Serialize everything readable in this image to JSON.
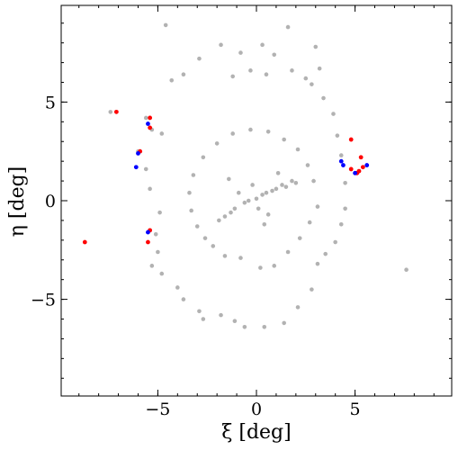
{
  "chart_data": {
    "type": "scatter",
    "xlabel": "ξ [deg]",
    "ylabel": "η [deg]",
    "xlim": [
      -9.9,
      9.9
    ],
    "ylim": [
      -9.9,
      9.9
    ],
    "xticks": [
      -5,
      0,
      5
    ],
    "yticks": [
      -5,
      0,
      5
    ],
    "xtick_labels": [
      "−5",
      "0",
      "5"
    ],
    "ytick_labels": [
      "−5",
      "0",
      "5"
    ],
    "grid": false,
    "ticks_direction": "in",
    "series": [
      {
        "marker_color": "#888888",
        "opacity": 0.65,
        "values": [
          [
            -4.6,
            8.9
          ],
          [
            1.6,
            8.8
          ],
          [
            0.3,
            7.9
          ],
          [
            -1.8,
            7.9
          ],
          [
            3.0,
            7.8
          ],
          [
            -0.8,
            7.5
          ],
          [
            0.9,
            7.4
          ],
          [
            -2.9,
            7.2
          ],
          [
            3.2,
            6.7
          ],
          [
            -3.7,
            6.4
          ],
          [
            1.8,
            6.6
          ],
          [
            -1.2,
            6.3
          ],
          [
            0.5,
            6.4
          ],
          [
            2.5,
            6.2
          ],
          [
            -4.3,
            6.1
          ],
          [
            -0.3,
            6.6
          ],
          [
            -7.4,
            4.5
          ],
          [
            -5.6,
            4.2
          ],
          [
            -6.0,
            2.5
          ],
          [
            -5.3,
            3.6
          ],
          [
            -4.8,
            3.4
          ],
          [
            -5.6,
            1.6
          ],
          [
            -5.4,
            0.6
          ],
          [
            -4.9,
            -0.6
          ],
          [
            -5.1,
            -1.7
          ],
          [
            -5.0,
            -2.6
          ],
          [
            -5.3,
            -3.3
          ],
          [
            -4.8,
            -3.7
          ],
          [
            -4.0,
            -4.4
          ],
          [
            -3.7,
            -5.0
          ],
          [
            -2.9,
            -5.6
          ],
          [
            -2.7,
            -6.0
          ],
          [
            -1.8,
            -5.8
          ],
          [
            -1.1,
            -6.1
          ],
          [
            -0.6,
            -6.4
          ],
          [
            0.4,
            -6.4
          ],
          [
            1.4,
            -6.2
          ],
          [
            2.1,
            -5.4
          ],
          [
            2.8,
            -4.5
          ],
          [
            3.1,
            -3.2
          ],
          [
            3.5,
            -2.7
          ],
          [
            4.0,
            -2.1
          ],
          [
            4.3,
            -1.2
          ],
          [
            4.5,
            -0.4
          ],
          [
            4.5,
            0.9
          ],
          [
            4.3,
            2.3
          ],
          [
            4.1,
            3.3
          ],
          [
            3.9,
            4.4
          ],
          [
            3.4,
            5.2
          ],
          [
            2.8,
            5.9
          ],
          [
            7.6,
            -3.5
          ],
          [
            -2.2,
            -2.3
          ],
          [
            -1.6,
            -2.8
          ],
          [
            -0.8,
            -2.9
          ],
          [
            0.2,
            -3.4
          ],
          [
            0.9,
            -3.3
          ],
          [
            1.6,
            -2.6
          ],
          [
            2.2,
            -1.9
          ],
          [
            2.7,
            -1.1
          ],
          [
            3.1,
            -0.3
          ],
          [
            2.9,
            1.0
          ],
          [
            2.6,
            1.8
          ],
          [
            2.1,
            2.6
          ],
          [
            1.4,
            3.1
          ],
          [
            0.6,
            3.5
          ],
          [
            -0.3,
            3.6
          ],
          [
            -1.2,
            3.4
          ],
          [
            -2.0,
            2.9
          ],
          [
            -2.7,
            2.2
          ],
          [
            -3.2,
            1.3
          ],
          [
            -3.4,
            0.4
          ],
          [
            -3.3,
            -0.5
          ],
          [
            -3.0,
            -1.3
          ],
          [
            -2.6,
            -1.9
          ],
          [
            -1.6,
            -0.8
          ],
          [
            -1.1,
            -0.4
          ],
          [
            -0.6,
            -0.1
          ],
          [
            0.0,
            0.1
          ],
          [
            0.5,
            0.4
          ],
          [
            1.0,
            0.6
          ],
          [
            1.5,
            0.7
          ],
          [
            2.0,
            0.9
          ],
          [
            -1.9,
            -1.0
          ],
          [
            -1.3,
            -0.6
          ],
          [
            -0.4,
            0.0
          ],
          [
            0.3,
            0.3
          ],
          [
            0.8,
            0.5
          ],
          [
            1.3,
            0.8
          ],
          [
            1.8,
            1.0
          ],
          [
            -0.9,
            0.4
          ],
          [
            0.1,
            -0.4
          ],
          [
            0.6,
            -0.7
          ],
          [
            -0.2,
            0.8
          ],
          [
            1.1,
            1.4
          ],
          [
            -1.4,
            1.1
          ],
          [
            0.4,
            -1.2
          ]
        ]
      },
      {
        "marker_color": "#ff0000",
        "values": [
          [
            -7.1,
            4.5
          ],
          [
            -8.7,
            -2.1
          ],
          [
            -5.4,
            4.2
          ],
          [
            -5.4,
            3.7
          ],
          [
            -5.9,
            2.5
          ],
          [
            -5.4,
            -1.5
          ],
          [
            -5.5,
            -2.1
          ],
          [
            4.8,
            3.1
          ],
          [
            5.3,
            2.2
          ],
          [
            4.8,
            1.6
          ],
          [
            5.2,
            1.5
          ],
          [
            5.1,
            1.4
          ],
          [
            5.4,
            1.7
          ]
        ]
      },
      {
        "marker_color": "#0000ff",
        "values": [
          [
            -5.5,
            3.9
          ],
          [
            -6.0,
            2.4
          ],
          [
            -6.1,
            1.7
          ],
          [
            -5.5,
            -1.6
          ],
          [
            4.3,
            2.0
          ],
          [
            4.4,
            1.8
          ],
          [
            5.6,
            1.8
          ],
          [
            5.0,
            1.4
          ]
        ]
      }
    ]
  }
}
